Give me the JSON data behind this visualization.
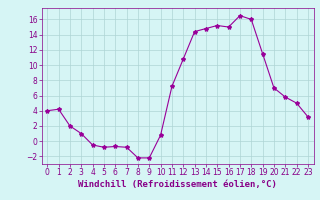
{
  "title": "",
  "xlabel": "Windchill (Refroidissement éolien,°C)",
  "x": [
    0,
    1,
    2,
    3,
    4,
    5,
    6,
    7,
    8,
    9,
    10,
    11,
    12,
    13,
    14,
    15,
    16,
    17,
    18,
    19,
    20,
    21,
    22,
    23
  ],
  "y": [
    4.0,
    4.2,
    2.0,
    1.0,
    -0.5,
    -0.8,
    -0.7,
    -0.8,
    -2.2,
    -2.2,
    0.8,
    7.2,
    10.8,
    14.4,
    14.8,
    15.2,
    15.0,
    16.5,
    16.0,
    11.5,
    7.0,
    5.8,
    5.0,
    3.2
  ],
  "line_color": "#990099",
  "marker": "*",
  "marker_size": 3,
  "bg_color": "#d6f5f5",
  "grid_color": "#aed4d4",
  "ylim": [
    -3,
    17.5
  ],
  "xlim": [
    -0.5,
    23.5
  ],
  "yticks": [
    -2,
    0,
    2,
    4,
    6,
    8,
    10,
    12,
    14,
    16
  ],
  "xticks": [
    0,
    1,
    2,
    3,
    4,
    5,
    6,
    7,
    8,
    9,
    10,
    11,
    12,
    13,
    14,
    15,
    16,
    17,
    18,
    19,
    20,
    21,
    22,
    23
  ],
  "tick_fontsize": 5.5,
  "label_fontsize": 6.5,
  "tick_color": "#880088",
  "label_color": "#880088"
}
